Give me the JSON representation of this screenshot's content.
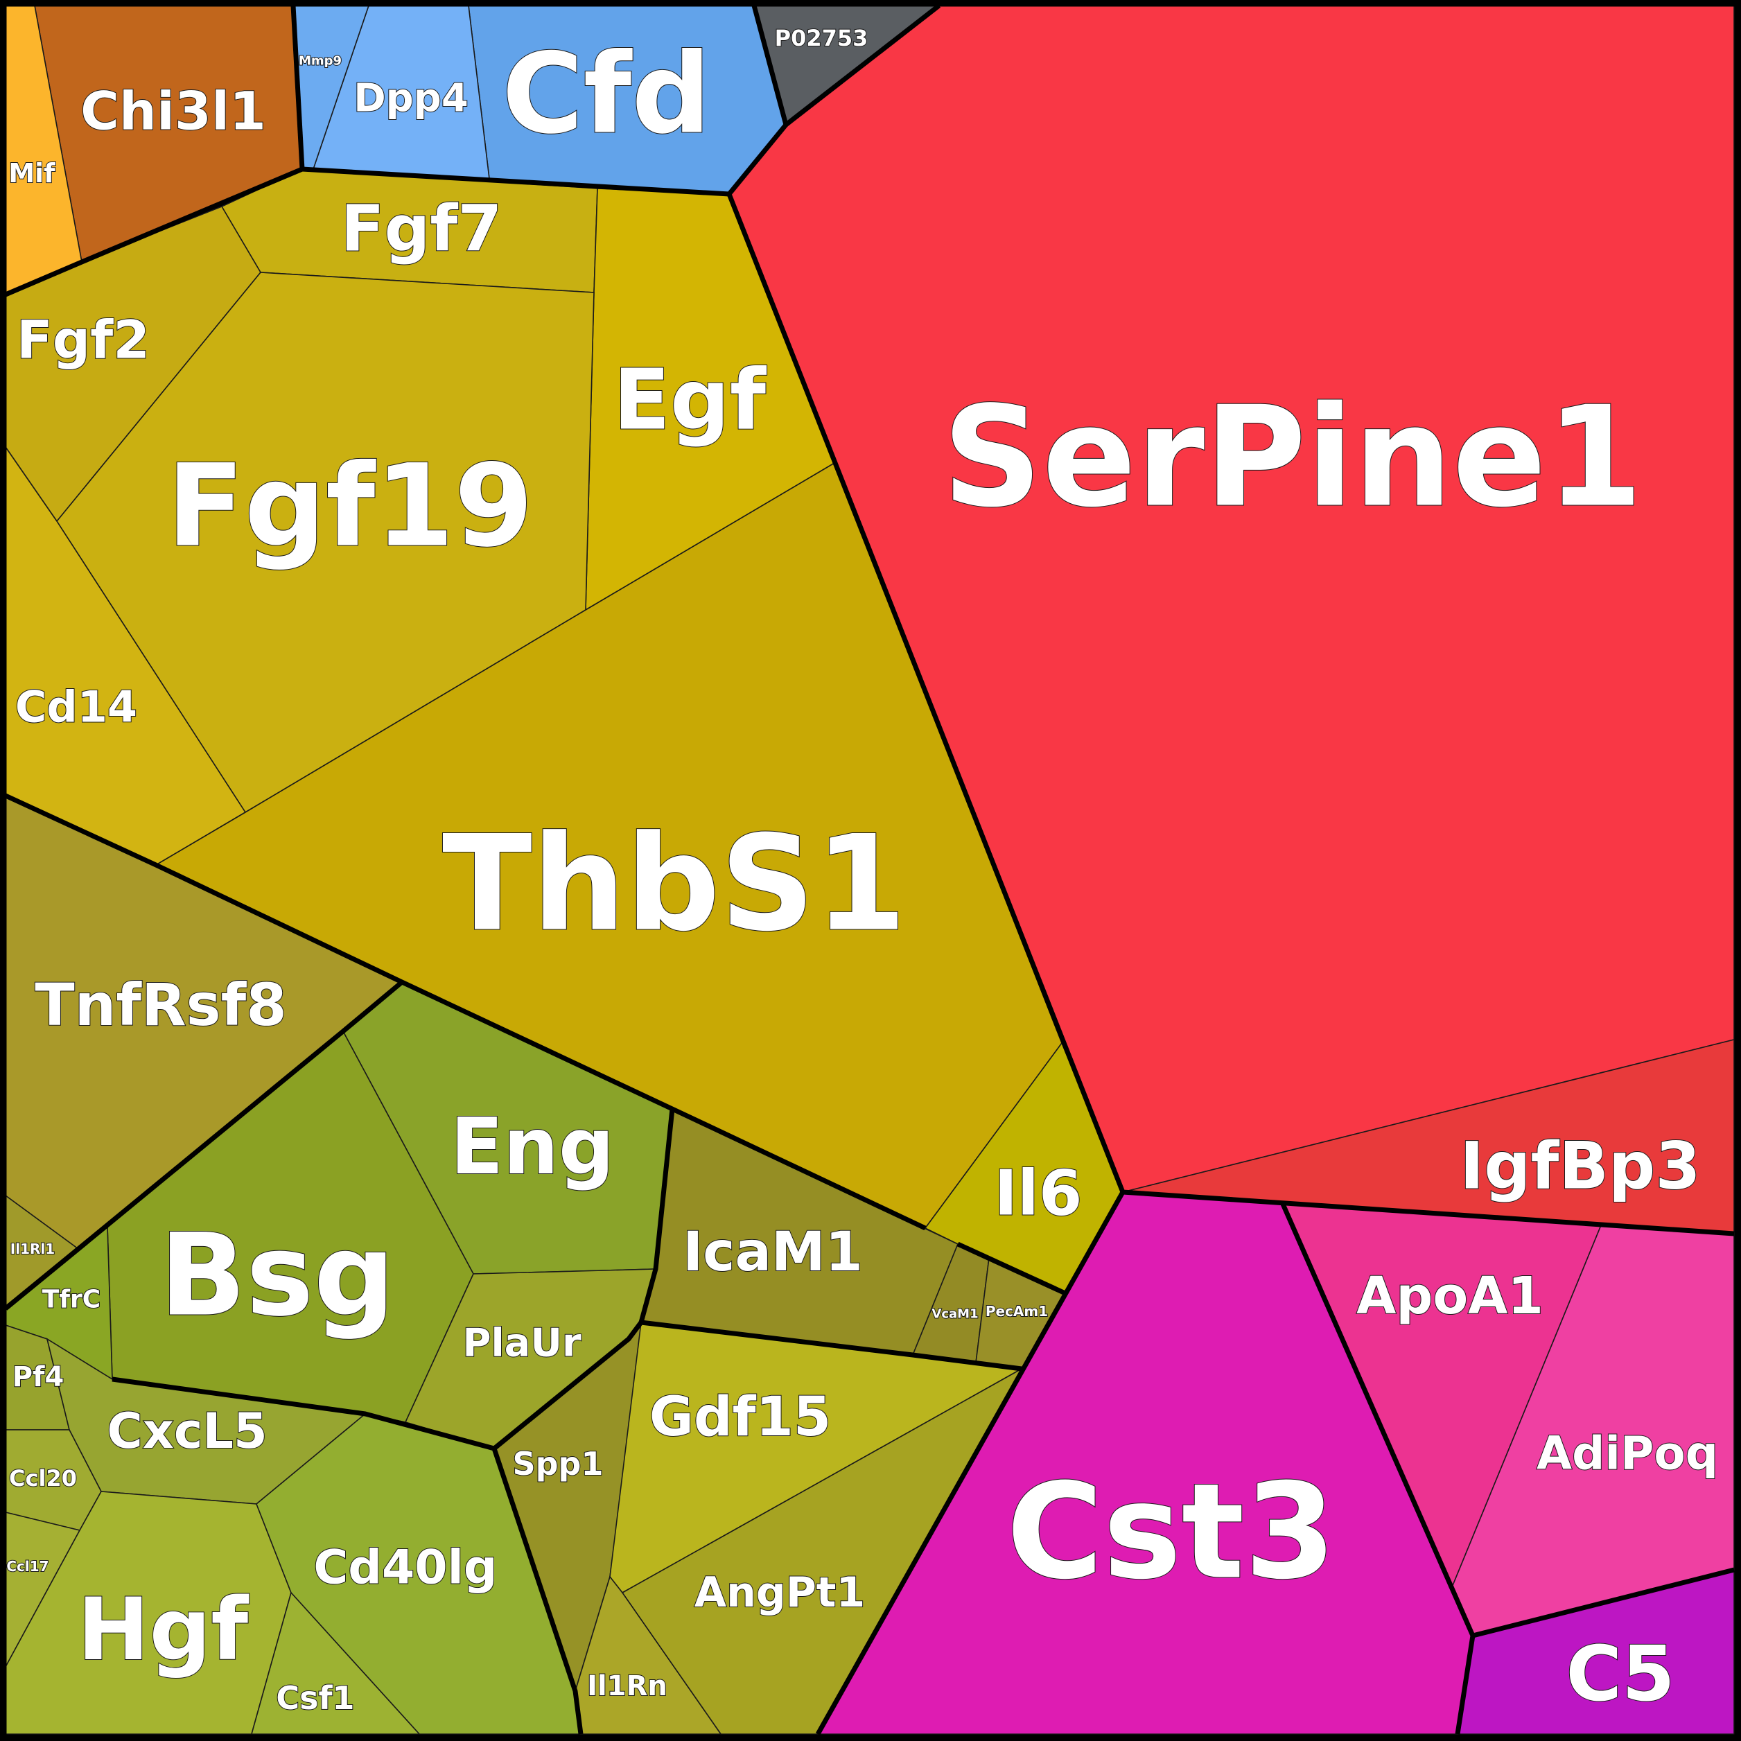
{
  "diagram": {
    "type": "voronoi-treemap",
    "cells": [
      {
        "label": "SerPine1",
        "color": "#f93745"
      },
      {
        "label": "IgfBp3",
        "color": "#e83a3b"
      },
      {
        "label": "P02753",
        "color": "#5a5e62"
      },
      {
        "label": "Cfd",
        "color": "#62a3ea"
      },
      {
        "label": "Dpp4",
        "color": "#74b1f7"
      },
      {
        "label": "Mmp9",
        "color": "#6cabf1"
      },
      {
        "label": "Chi3l1",
        "color": "#c1661c"
      },
      {
        "label": "Mif",
        "color": "#fcb52c"
      },
      {
        "label": "Fgf7",
        "color": "#c8b012"
      },
      {
        "label": "Egf",
        "color": "#d3b503"
      },
      {
        "label": "Fgf2",
        "color": "#c6ab13"
      },
      {
        "label": "Fgf19",
        "color": "#cab011"
      },
      {
        "label": "Cd14",
        "color": "#d2b412"
      },
      {
        "label": "ThbS1",
        "color": "#c8a905"
      },
      {
        "label": "TnfRsf8",
        "color": "#a99929"
      },
      {
        "label": "Il6",
        "color": "#c0b300"
      },
      {
        "label": "Eng",
        "color": "#8aa329"
      },
      {
        "label": "Bsg",
        "color": "#8ba123"
      },
      {
        "label": "IcaM1",
        "color": "#958e24"
      },
      {
        "label": "VcaM1",
        "color": "#938b25"
      },
      {
        "label": "PecAm1",
        "color": "#999028"
      },
      {
        "label": "Il1Rl1",
        "color": "#a09a2a"
      },
      {
        "label": "TfrC",
        "color": "#8aa624"
      },
      {
        "label": "PlaUr",
        "color": "#9ca52a"
      },
      {
        "label": "Pf4",
        "color": "#97a32d"
      },
      {
        "label": "CxcL5",
        "color": "#97a531"
      },
      {
        "label": "Ccl20",
        "color": "#a0ab31"
      },
      {
        "label": "Ccl17",
        "color": "#a5b033"
      },
      {
        "label": "Hgf",
        "color": "#a5b430"
      },
      {
        "label": "Cd40lg",
        "color": "#93ae30"
      },
      {
        "label": "Csf1",
        "color": "#9db232"
      },
      {
        "label": "Spp1",
        "color": "#969226"
      },
      {
        "label": "Gdf15",
        "color": "#bab51e"
      },
      {
        "label": "AngPt1",
        "color": "#a6a322"
      },
      {
        "label": "Il1Rn",
        "color": "#aba628"
      },
      {
        "label": "Cst3",
        "color": "#de1cb2"
      },
      {
        "label": "ApoA1",
        "color": "#ec3391"
      },
      {
        "label": "AdiPoq",
        "color": "#ef40a2"
      },
      {
        "label": "C5",
        "color": "#bd16c3"
      }
    ]
  }
}
